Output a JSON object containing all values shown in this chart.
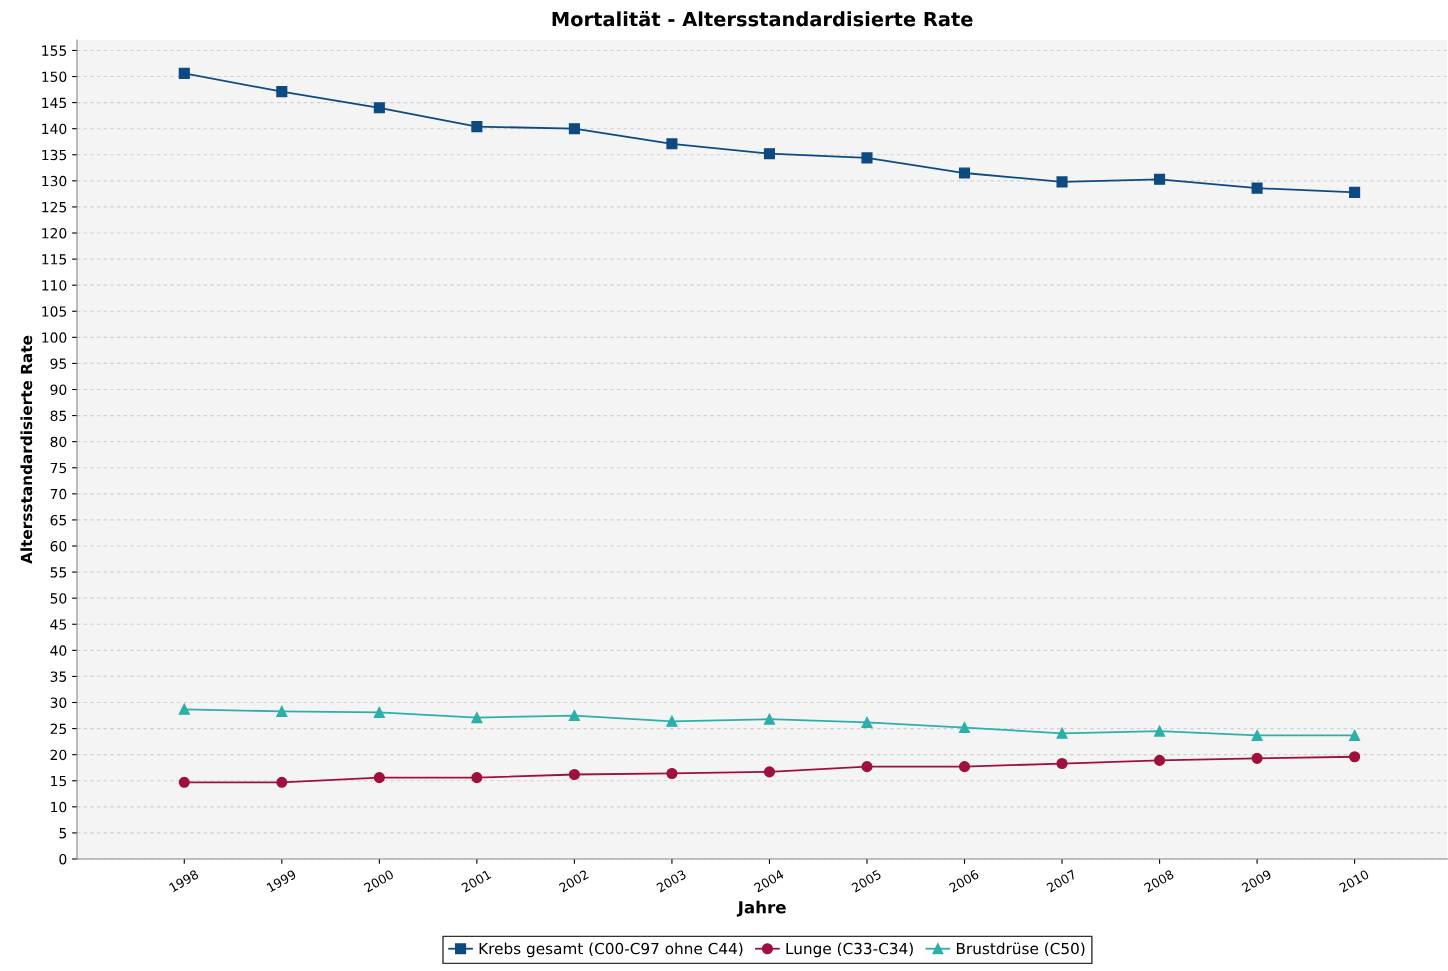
{
  "chart_data": {
    "type": "line",
    "title": "Mortalität - Altersstandardisierte Rate",
    "xlabel": "Jahre",
    "ylabel": "Altersstandardisierte Rate",
    "categories": [
      "1998",
      "1999",
      "2000",
      "2001",
      "2002",
      "2003",
      "2004",
      "2005",
      "2006",
      "2007",
      "2008",
      "2009",
      "2010"
    ],
    "series": [
      {
        "name": "Krebs gesamt (C00-C97 ohne C44)",
        "color": "#0e4a82",
        "marker": "square",
        "values": [
          150.6,
          147.1,
          144.0,
          140.4,
          140.0,
          137.1,
          135.2,
          134.4,
          131.5,
          129.8,
          130.3,
          128.6,
          127.8
        ]
      },
      {
        "name": "Lunge (C33-C34)",
        "color": "#a0103c",
        "marker": "circle",
        "values": [
          14.7,
          14.7,
          15.6,
          15.6,
          16.2,
          16.4,
          16.7,
          17.7,
          17.7,
          18.3,
          18.9,
          19.3,
          19.6
        ]
      },
      {
        "name": "Brustdrüse (C50)",
        "color": "#2ab0a8",
        "marker": "triangle",
        "values": [
          28.7,
          28.3,
          28.1,
          27.1,
          27.5,
          26.4,
          26.8,
          26.2,
          25.2,
          24.1,
          24.5,
          23.7,
          23.7
        ]
      }
    ],
    "ylim": [
      0,
      157
    ],
    "yticks": [
      0,
      5,
      10,
      15,
      20,
      25,
      30,
      35,
      40,
      45,
      50,
      55,
      60,
      65,
      70,
      75,
      80,
      85,
      90,
      95,
      100,
      105,
      110,
      115,
      120,
      125,
      130,
      135,
      140,
      145,
      150,
      155
    ],
    "grid": "y",
    "legend": "bottom",
    "line_style": "solid"
  }
}
